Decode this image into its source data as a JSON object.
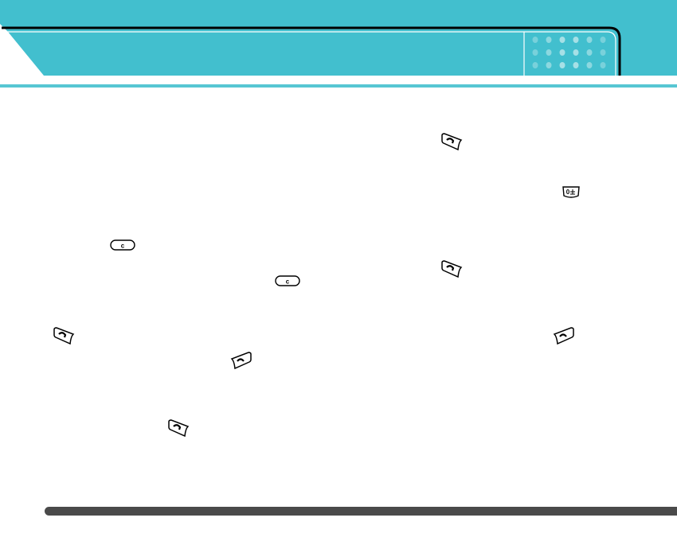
{
  "header": {
    "title": "",
    "accent": "#42bfce",
    "dot_color": "#a6e0e6"
  },
  "icons": [
    {
      "name": "send-key-icon"
    },
    {
      "name": "zero-key-icon",
      "label": "0"
    },
    {
      "name": "clear-key-icon",
      "label": "c"
    },
    {
      "name": "end-key-icon"
    }
  ],
  "footer": {
    "color": "#4a4a4a"
  }
}
